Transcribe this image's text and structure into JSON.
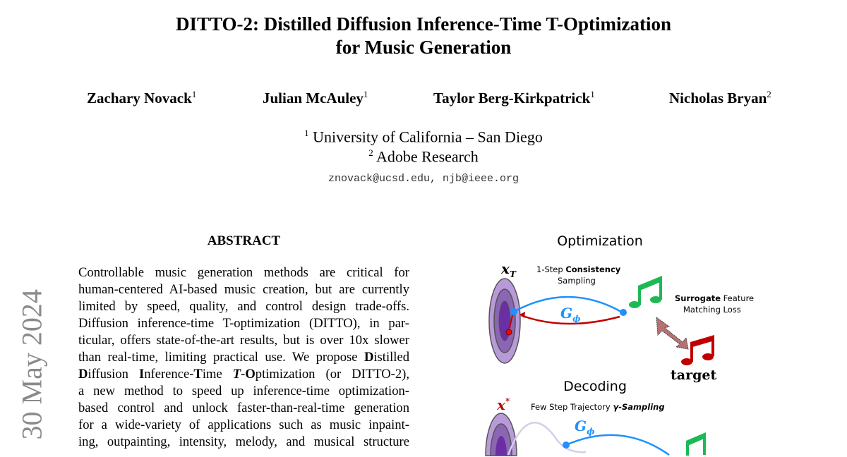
{
  "title": {
    "line1": "DITTO-2: Distilled Diffusion Inference-Time T-Optimization",
    "line2": "for Music Generation"
  },
  "authors": [
    {
      "name": "Zachary Novack",
      "sup": "1"
    },
    {
      "name": "Julian McAuley",
      "sup": "1"
    },
    {
      "name": "Taylor Berg-Kirkpatrick",
      "sup": "1"
    },
    {
      "name": "Nicholas Bryan",
      "sup": "2"
    }
  ],
  "affiliations": [
    {
      "sup": "1",
      "text": "University of California – San Diego"
    },
    {
      "sup": "2",
      "text": "Adobe Research"
    }
  ],
  "emails": "znovack@ucsd.edu, njb@ieee.org",
  "arxiv_date": "30 May 2024",
  "abstract": {
    "heading": "ABSTRACT",
    "lines": [
      [
        {
          "t": "Controllable music generation methods are critical for"
        }
      ],
      [
        {
          "t": "human-centered AI-based music creation, but are currently"
        }
      ],
      [
        {
          "t": "limited by speed, quality, and control design trade-offs."
        }
      ],
      [
        {
          "t": "Diffusion inference-time T-optimization (DITTO), in par-"
        }
      ],
      [
        {
          "t": "ticular, offers state-of-the-art results, but is over 10x slower"
        }
      ],
      [
        {
          "t": "than real-time, limiting practical use. We propose "
        },
        {
          "t": "D",
          "b": true
        },
        {
          "t": "istilled"
        }
      ],
      [
        {
          "t": "D",
          "b": true
        },
        {
          "t": "iffusion "
        },
        {
          "t": "I",
          "b": true
        },
        {
          "t": "nference-"
        },
        {
          "t": "T",
          "b": true
        },
        {
          "t": "ime "
        },
        {
          "t": "T",
          "b": true,
          "i": true
        },
        {
          "t": "-"
        },
        {
          "t": "O",
          "b": true
        },
        {
          "t": "ptimization (or DITTO-2),"
        }
      ],
      [
        {
          "t": "a new method to speed up inference-time optimization-"
        }
      ],
      [
        {
          "t": "based control and unlock faster-than-real-time generation"
        }
      ],
      [
        {
          "t": "for a wide-variety of applications such as music inpaint-"
        }
      ],
      [
        {
          "t": "ing, outpainting, intensity, melody, and musical structure"
        }
      ]
    ]
  },
  "figure": {
    "optimization_title": "Optimization",
    "x_T": "x",
    "x_T_sub": "T",
    "consistency_1": "1-Step ",
    "consistency_bold": "Consistency",
    "consistency_2": "Sampling",
    "g_phi": "G",
    "g_phi_sub": "ϕ",
    "surrogate_bold": "Surrogate",
    "surrogate_1": " Feature",
    "surrogate_2": "Matching Loss",
    "target": "target",
    "decoding_title": "Decoding",
    "x_T_star_sup": "*",
    "few_step": "Few Step Trajectory ",
    "gamma_sampling": "γ-Sampling",
    "colors": {
      "blue": "#1e90ff",
      "red": "#c00000",
      "green": "#1db954",
      "purple_outer": "#b99ad8",
      "purple_mid": "#8a66b3",
      "purple_inner": "#6a2fa3",
      "arrow": "#b87070"
    }
  }
}
